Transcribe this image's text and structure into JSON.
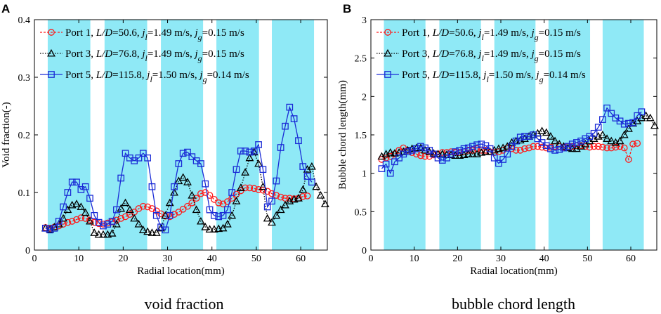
{
  "chart_data": [
    {
      "type": "line",
      "panel_letter": "A",
      "caption": "void fraction",
      "xlabel": "Radial location(mm)",
      "ylabel": "Void fraction(-)",
      "xlim": [
        0,
        66
      ],
      "ylim": [
        0,
        0.4
      ],
      "xticks": [
        0,
        10,
        20,
        30,
        40,
        50,
        60
      ],
      "yticks": [
        0,
        0.1,
        0.2,
        0.3,
        0.4
      ],
      "ytick_labels": [
        "0",
        "0.1",
        "0.2",
        "0.3",
        "0.4"
      ],
      "grid": false,
      "legend_position": "top-left",
      "shaded_bands_mm": [
        [
          3,
          12.6
        ],
        [
          15.8,
          25.4
        ],
        [
          28.5,
          38
        ],
        [
          41,
          50.6
        ],
        [
          53.5,
          63
        ]
      ],
      "shade_color": "#8fe9f6",
      "series": [
        {
          "name": "Port 1",
          "legend_parts": [
            "Port 1, ",
            "L/D",
            "=50.6, ",
            "j",
            "l",
            "=1.49 m/s, ",
            "j",
            "g",
            "=0.15 m/s"
          ],
          "color": "#ff1a1a",
          "marker": "circle",
          "dash": "3,2",
          "x": [
            2.5,
            3.5,
            4.5,
            5.5,
            6.5,
            7.5,
            8.5,
            9.5,
            10.5,
            11.5,
            12.5,
            13.5,
            14.5,
            15.5,
            16.5,
            17.5,
            18.5,
            19.5,
            20.5,
            21.5,
            22.5,
            23.5,
            24.5,
            25.5,
            26.5,
            27.5,
            28.5,
            29.5,
            30.5,
            31.5,
            32.5,
            33.5,
            34.5,
            35.5,
            36.5,
            37.5,
            38.5,
            39.5,
            40.5,
            41.5,
            42.5,
            43.5,
            44.5,
            45.5,
            46.5,
            47.5,
            48.5,
            49.5,
            50.5,
            51.5,
            52.5,
            53.5,
            54.5,
            55.5,
            56.5,
            57.5,
            58.5,
            59.5,
            60.5,
            61.5
          ],
          "y": [
            0.039,
            0.038,
            0.04,
            0.042,
            0.045,
            0.048,
            0.05,
            0.053,
            0.056,
            0.055,
            0.052,
            0.048,
            0.046,
            0.045,
            0.047,
            0.049,
            0.052,
            0.055,
            0.058,
            0.062,
            0.066,
            0.072,
            0.076,
            0.075,
            0.072,
            0.068,
            0.063,
            0.059,
            0.058,
            0.062,
            0.066,
            0.071,
            0.076,
            0.082,
            0.09,
            0.098,
            0.1,
            0.095,
            0.088,
            0.082,
            0.08,
            0.084,
            0.09,
            0.097,
            0.103,
            0.108,
            0.108,
            0.107,
            0.105,
            0.104,
            0.102,
            0.098,
            0.095,
            0.092,
            0.09,
            0.09,
            0.089,
            0.09,
            0.093,
            0.094
          ]
        },
        {
          "name": "Port 3",
          "legend_parts": [
            "Port 3, ",
            "L/D",
            "=76.8, ",
            "j",
            "l",
            "=1.49 m/s, ",
            "j",
            "g",
            "=0.15 m/s"
          ],
          "color": "#000000",
          "marker": "triangle",
          "dash": "1.5,2",
          "x": [
            2.5,
            3.5,
            4.5,
            5.5,
            6.5,
            7.5,
            8.5,
            9.5,
            10.5,
            11.5,
            12.5,
            13.5,
            14.5,
            15.5,
            16.5,
            17.5,
            18.5,
            19.5,
            20.5,
            21.5,
            22.5,
            23.5,
            24.5,
            25.5,
            26.5,
            27.5,
            28.5,
            29.5,
            30.5,
            31.5,
            32.5,
            33.5,
            34.5,
            35.5,
            36.5,
            37.5,
            38.5,
            39.5,
            40.5,
            41.5,
            42.5,
            43.5,
            44.5,
            45.5,
            46.5,
            47.5,
            48.5,
            49.5,
            50.5,
            51.5,
            52.5,
            53.5,
            54.5,
            55.5,
            56.5,
            57.5,
            58.5,
            59.5,
            60.5,
            61.5,
            62.5,
            63.5,
            64.5,
            65.5
          ],
          "y": [
            0.038,
            0.036,
            0.04,
            0.045,
            0.055,
            0.07,
            0.078,
            0.08,
            0.075,
            0.065,
            0.05,
            0.03,
            0.027,
            0.027,
            0.027,
            0.029,
            0.045,
            0.072,
            0.082,
            0.07,
            0.055,
            0.045,
            0.035,
            0.032,
            0.03,
            0.03,
            0.038,
            0.06,
            0.082,
            0.1,
            0.12,
            0.126,
            0.118,
            0.095,
            0.07,
            0.05,
            0.04,
            0.036,
            0.036,
            0.037,
            0.038,
            0.045,
            0.06,
            0.085,
            0.108,
            0.135,
            0.16,
            0.17,
            0.15,
            0.11,
            0.055,
            0.048,
            0.06,
            0.07,
            0.078,
            0.085,
            0.088,
            0.09,
            0.105,
            0.14,
            0.145,
            0.11,
            0.095,
            0.08
          ]
        },
        {
          "name": "Port 5",
          "legend_parts": [
            "Port 5, ",
            "L/D",
            "=115.8, ",
            "j",
            "l",
            "=1.50 m/s, ",
            "j",
            "g",
            "=0.14 m/s"
          ],
          "color": "#1a2bd6",
          "marker": "square",
          "dash": "",
          "x": [
            2.5,
            3.5,
            4.5,
            5.5,
            6.5,
            7.5,
            8.5,
            9.5,
            10.5,
            11.5,
            12.5,
            13.5,
            14.5,
            15.5,
            16.5,
            17.5,
            18.5,
            19.5,
            20.5,
            21.5,
            22.5,
            23.5,
            24.5,
            25.5,
            26.5,
            27.5,
            28.5,
            29.5,
            30.5,
            31.5,
            32.5,
            33.5,
            34.5,
            35.5,
            36.5,
            37.5,
            38.5,
            39.5,
            40.5,
            41.5,
            42.5,
            43.5,
            44.5,
            45.5,
            46.5,
            47.5,
            48.5,
            49.5,
            50.5,
            51.5,
            52.5,
            53.5,
            54.5,
            55.5,
            56.5,
            57.5,
            58.5,
            59.5,
            60.5,
            61.5,
            62.5
          ],
          "y": [
            0.038,
            0.035,
            0.038,
            0.05,
            0.075,
            0.1,
            0.118,
            0.118,
            0.105,
            0.11,
            0.09,
            0.06,
            0.048,
            0.042,
            0.045,
            0.05,
            0.07,
            0.125,
            0.168,
            0.16,
            0.155,
            0.16,
            0.168,
            0.16,
            0.11,
            0.06,
            0.04,
            0.035,
            0.06,
            0.11,
            0.15,
            0.168,
            0.17,
            0.162,
            0.155,
            0.15,
            0.115,
            0.07,
            0.06,
            0.058,
            0.06,
            0.07,
            0.1,
            0.14,
            0.172,
            0.172,
            0.17,
            0.172,
            0.183,
            0.14,
            0.075,
            0.085,
            0.12,
            0.178,
            0.215,
            0.248,
            0.228,
            0.19,
            0.145,
            0.128,
            0.118
          ]
        }
      ]
    },
    {
      "type": "line",
      "panel_letter": "B",
      "caption": "bubble chord length",
      "xlabel": "Radial location(mm)",
      "ylabel": "Bubble chord length(mm)",
      "xlim": [
        0,
        66
      ],
      "ylim": [
        0,
        3
      ],
      "xticks": [
        0,
        10,
        20,
        30,
        40,
        50,
        60
      ],
      "yticks": [
        0,
        0.5,
        1,
        1.5,
        2,
        2.5,
        3
      ],
      "ytick_labels": [
        "0",
        "0.5",
        "1",
        "1.5",
        "2",
        "2.5",
        "3"
      ],
      "grid": false,
      "legend_position": "top-left",
      "shaded_bands_mm": [
        [
          3,
          12.6
        ],
        [
          15.8,
          25.4
        ],
        [
          28.5,
          38
        ],
        [
          41,
          50.6
        ],
        [
          53.5,
          63
        ]
      ],
      "shade_color": "#8fe9f6",
      "series": [
        {
          "name": "Port 1",
          "legend_parts": [
            "Port 1, ",
            "L/D",
            "=50.6, ",
            "j",
            "l",
            "=1.49 m/s, ",
            "j",
            "g",
            "=0.15 m/s"
          ],
          "color": "#ff1a1a",
          "marker": "circle",
          "dash": "3,2",
          "x": [
            2.5,
            3.5,
            4.5,
            5.5,
            6.5,
            7.5,
            8.5,
            9.5,
            10.5,
            11.5,
            12.5,
            13.5,
            14.5,
            15.5,
            16.5,
            17.5,
            18.5,
            19.5,
            20.5,
            21.5,
            22.5,
            23.5,
            24.5,
            25.5,
            26.5,
            27.5,
            28.5,
            29.5,
            30.5,
            31.5,
            32.5,
            33.5,
            34.5,
            35.5,
            36.5,
            37.5,
            38.5,
            39.5,
            40.5,
            41.5,
            42.5,
            43.5,
            44.5,
            45.5,
            46.5,
            47.5,
            48.5,
            49.5,
            50.5,
            51.5,
            52.5,
            53.5,
            54.5,
            55.5,
            56.5,
            57.5,
            58.5,
            59.5,
            60.5,
            61.5
          ],
          "y": [
            1.18,
            1.2,
            1.22,
            1.25,
            1.3,
            1.33,
            1.3,
            1.27,
            1.25,
            1.23,
            1.22,
            1.22,
            1.24,
            1.25,
            1.27,
            1.27,
            1.28,
            1.27,
            1.27,
            1.28,
            1.3,
            1.3,
            1.32,
            1.3,
            1.3,
            1.28,
            1.27,
            1.28,
            1.3,
            1.33,
            1.32,
            1.3,
            1.3,
            1.32,
            1.33,
            1.35,
            1.35,
            1.34,
            1.33,
            1.34,
            1.35,
            1.35,
            1.34,
            1.35,
            1.35,
            1.36,
            1.36,
            1.35,
            1.34,
            1.35,
            1.35,
            1.34,
            1.33,
            1.33,
            1.34,
            1.35,
            1.33,
            1.18,
            1.38,
            1.39
          ]
        },
        {
          "name": "Port 3",
          "legend_parts": [
            "Port 3, ",
            "L/D",
            "=76.8, ",
            "j",
            "l",
            "=1.49 m/s, ",
            "j",
            "g",
            "=0.15 m/s"
          ],
          "color": "#000000",
          "marker": "triangle",
          "dash": "1.5,2",
          "x": [
            2.5,
            3.5,
            4.5,
            5.5,
            6.5,
            7.5,
            8.5,
            9.5,
            10.5,
            11.5,
            12.5,
            13.5,
            14.5,
            15.5,
            16.5,
            17.5,
            18.5,
            19.5,
            20.5,
            21.5,
            22.5,
            23.5,
            24.5,
            25.5,
            26.5,
            27.5,
            28.5,
            29.5,
            30.5,
            31.5,
            32.5,
            33.5,
            34.5,
            35.5,
            36.5,
            37.5,
            38.5,
            39.5,
            40.5,
            41.5,
            42.5,
            43.5,
            44.5,
            45.5,
            46.5,
            47.5,
            48.5,
            49.5,
            50.5,
            51.5,
            52.5,
            53.5,
            54.5,
            55.5,
            56.5,
            57.5,
            58.5,
            59.5,
            60.5,
            61.5,
            62.5,
            63.5,
            64.5,
            65.5
          ],
          "y": [
            1.22,
            1.25,
            1.27,
            1.26,
            1.27,
            1.28,
            1.3,
            1.32,
            1.33,
            1.33,
            1.3,
            1.28,
            1.26,
            1.25,
            1.25,
            1.24,
            1.24,
            1.23,
            1.23,
            1.24,
            1.25,
            1.25,
            1.25,
            1.27,
            1.28,
            1.28,
            1.3,
            1.32,
            1.33,
            1.35,
            1.4,
            1.42,
            1.43,
            1.45,
            1.48,
            1.5,
            1.52,
            1.55,
            1.53,
            1.48,
            1.42,
            1.38,
            1.35,
            1.33,
            1.32,
            1.32,
            1.35,
            1.38,
            1.42,
            1.45,
            1.48,
            1.5,
            1.45,
            1.42,
            1.4,
            1.42,
            1.5,
            1.58,
            1.65,
            1.68,
            1.72,
            1.75,
            1.72,
            1.62
          ]
        },
        {
          "name": "Port 5",
          "legend_parts": [
            "Port 5, ",
            "L/D",
            "=115.8, ",
            "j",
            "l",
            "=1.50 m/s, ",
            "j",
            "g",
            "=0.14 m/s"
          ],
          "color": "#1a2bd6",
          "marker": "square",
          "dash": "",
          "x": [
            2.5,
            3.5,
            4.5,
            5.5,
            6.5,
            7.5,
            8.5,
            9.5,
            10.5,
            11.5,
            12.5,
            13.5,
            14.5,
            15.5,
            16.5,
            17.5,
            18.5,
            19.5,
            20.5,
            21.5,
            22.5,
            23.5,
            24.5,
            25.5,
            26.5,
            27.5,
            28.5,
            29.5,
            30.5,
            31.5,
            32.5,
            33.5,
            34.5,
            35.5,
            36.5,
            37.5,
            38.5,
            39.5,
            40.5,
            41.5,
            42.5,
            43.5,
            44.5,
            45.5,
            46.5,
            47.5,
            48.5,
            49.5,
            50.5,
            51.5,
            52.5,
            53.5,
            54.5,
            55.5,
            56.5,
            57.5,
            58.5,
            59.5,
            60.5,
            61.5,
            62.5
          ],
          "y": [
            1.06,
            1.12,
            1.0,
            1.15,
            1.2,
            1.25,
            1.28,
            1.3,
            1.32,
            1.35,
            1.33,
            1.3,
            1.25,
            1.2,
            1.17,
            1.2,
            1.25,
            1.28,
            1.3,
            1.32,
            1.33,
            1.35,
            1.37,
            1.38,
            1.36,
            1.32,
            1.2,
            1.13,
            1.18,
            1.25,
            1.35,
            1.42,
            1.47,
            1.48,
            1.48,
            1.5,
            1.45,
            1.4,
            1.36,
            1.32,
            1.3,
            1.31,
            1.33,
            1.35,
            1.38,
            1.4,
            1.42,
            1.45,
            1.48,
            1.52,
            1.6,
            1.7,
            1.85,
            1.78,
            1.72,
            1.68,
            1.64,
            1.65,
            1.66,
            1.75,
            1.8
          ]
        }
      ]
    }
  ]
}
